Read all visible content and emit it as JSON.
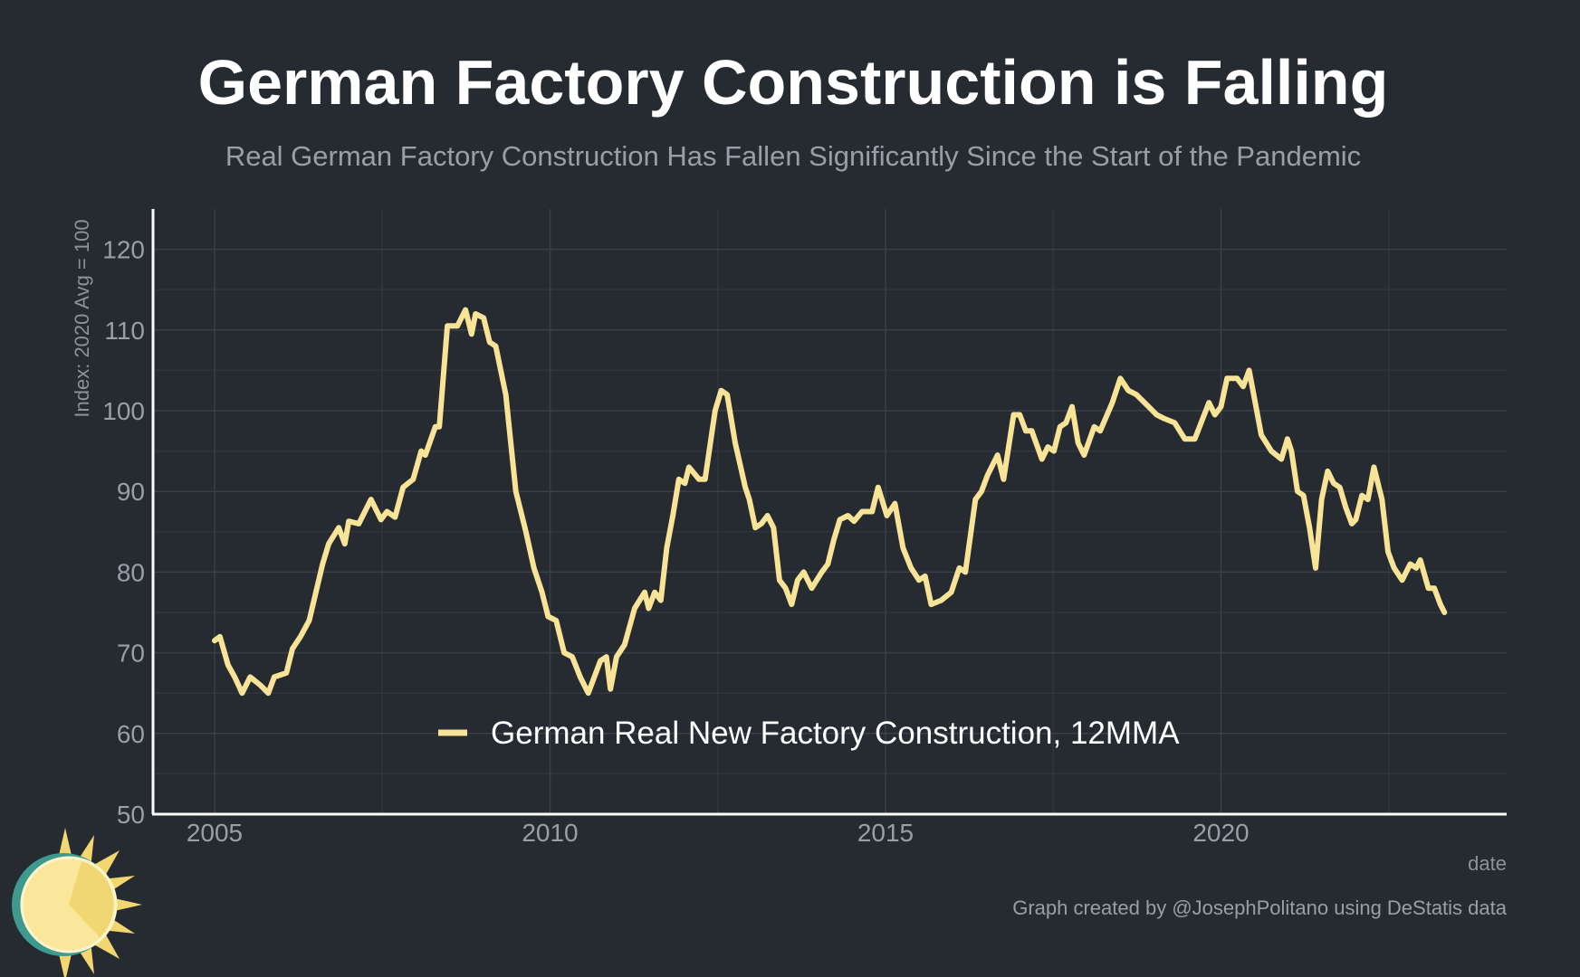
{
  "chart_data": {
    "type": "line",
    "title": "German Factory Construction is Falling",
    "subtitle": "Real German Factory Construction Has Fallen Significantly Since the Start of the Pandemic",
    "xlabel": "date",
    "ylabel": "Index: 2020 Avg = 100",
    "xlim": [
      2004.2,
      2025.0
    ],
    "ylim": [
      50,
      125
    ],
    "x_ticks": [
      "2005",
      "2010",
      "2015",
      "2020"
    ],
    "y_ticks": [
      "50",
      "60",
      "70",
      "80",
      "90",
      "100",
      "110",
      "120"
    ],
    "grid": true,
    "legend_position": "bottom-center",
    "credit": "Graph created by @JosephPolitano using DeStatis data",
    "colors": {
      "background": "#262a31",
      "line": "#f8e397",
      "grid": "#3a3f48",
      "axis": "#ffffff"
    },
    "series": [
      {
        "name": "German Real New Factory Construction, 12MMA",
        "points": [
          [
            2005.0,
            71.5
          ],
          [
            2005.08,
            72
          ],
          [
            2005.2,
            68.5
          ],
          [
            2005.3,
            67
          ],
          [
            2005.41,
            65
          ],
          [
            2005.53,
            67
          ],
          [
            2005.68,
            66
          ],
          [
            2005.8,
            65
          ],
          [
            2005.89,
            67
          ],
          [
            2006.07,
            67.5
          ],
          [
            2006.16,
            70.5
          ],
          [
            2006.28,
            72
          ],
          [
            2006.41,
            74
          ],
          [
            2006.61,
            81
          ],
          [
            2006.7,
            83.5
          ],
          [
            2006.85,
            85.5
          ],
          [
            2006.94,
            83.5
          ],
          [
            2007.0,
            86.3
          ],
          [
            2007.15,
            86
          ],
          [
            2007.33,
            89
          ],
          [
            2007.48,
            86.5
          ],
          [
            2007.57,
            87.5
          ],
          [
            2007.69,
            86.8
          ],
          [
            2007.81,
            90.5
          ],
          [
            2007.96,
            91.5
          ],
          [
            2008.08,
            95
          ],
          [
            2008.14,
            94.5
          ],
          [
            2008.29,
            98
          ],
          [
            2008.35,
            98
          ],
          [
            2008.47,
            110.5
          ],
          [
            2008.62,
            110.5
          ],
          [
            2008.74,
            112.5
          ],
          [
            2008.83,
            109.5
          ],
          [
            2008.89,
            112
          ],
          [
            2009.01,
            111.5
          ],
          [
            2009.1,
            108.5
          ],
          [
            2009.19,
            108
          ],
          [
            2009.34,
            102
          ],
          [
            2009.49,
            90
          ],
          [
            2009.64,
            85
          ],
          [
            2009.76,
            80.5
          ],
          [
            2009.88,
            77.5
          ],
          [
            2009.97,
            74.5
          ],
          [
            2010.09,
            74
          ],
          [
            2010.21,
            70
          ],
          [
            2010.33,
            69.5
          ],
          [
            2010.45,
            67
          ],
          [
            2010.57,
            65
          ],
          [
            2010.75,
            69
          ],
          [
            2010.84,
            69.5
          ],
          [
            2010.9,
            65.5
          ],
          [
            2010.99,
            69.5
          ],
          [
            2011.11,
            71
          ],
          [
            2011.26,
            75.5
          ],
          [
            2011.41,
            77.5
          ],
          [
            2011.47,
            75.5
          ],
          [
            2011.56,
            77.5
          ],
          [
            2011.65,
            76.5
          ],
          [
            2011.74,
            83
          ],
          [
            2011.83,
            87
          ],
          [
            2011.92,
            91.5
          ],
          [
            2012.01,
            91
          ],
          [
            2012.07,
            93
          ],
          [
            2012.22,
            91.5
          ],
          [
            2012.31,
            91.5
          ],
          [
            2012.46,
            100
          ],
          [
            2012.55,
            102.5
          ],
          [
            2012.64,
            102
          ],
          [
            2012.76,
            96
          ],
          [
            2012.91,
            90.5
          ],
          [
            2012.97,
            89
          ],
          [
            2013.06,
            85.5
          ],
          [
            2013.15,
            86
          ],
          [
            2013.24,
            87
          ],
          [
            2013.33,
            85.5
          ],
          [
            2013.42,
            79
          ],
          [
            2013.51,
            78
          ],
          [
            2013.6,
            76
          ],
          [
            2013.69,
            79
          ],
          [
            2013.78,
            80
          ],
          [
            2013.9,
            78
          ],
          [
            2014.05,
            80
          ],
          [
            2014.14,
            81
          ],
          [
            2014.23,
            84
          ],
          [
            2014.32,
            86.5
          ],
          [
            2014.44,
            87
          ],
          [
            2014.53,
            86.3
          ],
          [
            2014.65,
            87.5
          ],
          [
            2014.8,
            87.5
          ],
          [
            2014.89,
            90.5
          ],
          [
            2015.02,
            87
          ],
          [
            2015.14,
            88.5
          ],
          [
            2015.26,
            83
          ],
          [
            2015.38,
            80.5
          ],
          [
            2015.5,
            79
          ],
          [
            2015.59,
            79.5
          ],
          [
            2015.68,
            76
          ],
          [
            2015.83,
            76.5
          ],
          [
            2015.98,
            77.5
          ],
          [
            2016.1,
            80.5
          ],
          [
            2016.19,
            80
          ],
          [
            2016.34,
            89
          ],
          [
            2016.43,
            90
          ],
          [
            2016.52,
            92
          ],
          [
            2016.67,
            94.5
          ],
          [
            2016.76,
            91.5
          ],
          [
            2016.91,
            99.5
          ],
          [
            2017.0,
            99.5
          ],
          [
            2017.09,
            97.5
          ],
          [
            2017.18,
            97.5
          ],
          [
            2017.33,
            94
          ],
          [
            2017.42,
            95.5
          ],
          [
            2017.51,
            95
          ],
          [
            2017.6,
            98
          ],
          [
            2017.69,
            98.5
          ],
          [
            2017.78,
            100.5
          ],
          [
            2017.87,
            96
          ],
          [
            2017.96,
            94.5
          ],
          [
            2018.11,
            98
          ],
          [
            2018.2,
            97.5
          ],
          [
            2018.38,
            101
          ],
          [
            2018.5,
            104
          ],
          [
            2018.62,
            102.5
          ],
          [
            2018.74,
            102
          ],
          [
            2018.92,
            100.5
          ],
          [
            2019.04,
            99.5
          ],
          [
            2019.16,
            99
          ],
          [
            2019.31,
            98.5
          ],
          [
            2019.46,
            96.5
          ],
          [
            2019.61,
            96.5
          ],
          [
            2019.82,
            101
          ],
          [
            2019.91,
            99.5
          ],
          [
            2020.0,
            100.5
          ],
          [
            2020.09,
            104
          ],
          [
            2020.24,
            104
          ],
          [
            2020.33,
            103
          ],
          [
            2020.42,
            105
          ],
          [
            2020.51,
            101
          ],
          [
            2020.6,
            97
          ],
          [
            2020.75,
            95
          ],
          [
            2020.9,
            94
          ],
          [
            2020.99,
            96.5
          ],
          [
            2021.05,
            95
          ],
          [
            2021.14,
            90
          ],
          [
            2021.23,
            89.5
          ],
          [
            2021.32,
            85.5
          ],
          [
            2021.41,
            80.5
          ],
          [
            2021.5,
            89
          ],
          [
            2021.59,
            92.5
          ],
          [
            2021.68,
            91
          ],
          [
            2021.77,
            90.5
          ],
          [
            2021.86,
            88
          ],
          [
            2021.95,
            86
          ],
          [
            2022.01,
            86.5
          ],
          [
            2022.1,
            89.5
          ],
          [
            2022.19,
            89
          ],
          [
            2022.28,
            93
          ],
          [
            2022.4,
            89
          ],
          [
            2022.49,
            82.5
          ],
          [
            2022.58,
            80.5
          ],
          [
            2022.7,
            79
          ],
          [
            2022.82,
            81
          ],
          [
            2022.91,
            80.5
          ],
          [
            2022.97,
            81.5
          ],
          [
            2023.09,
            78
          ],
          [
            2023.18,
            78
          ],
          [
            2023.27,
            76
          ],
          [
            2023.33,
            75
          ]
        ]
      }
    ]
  }
}
